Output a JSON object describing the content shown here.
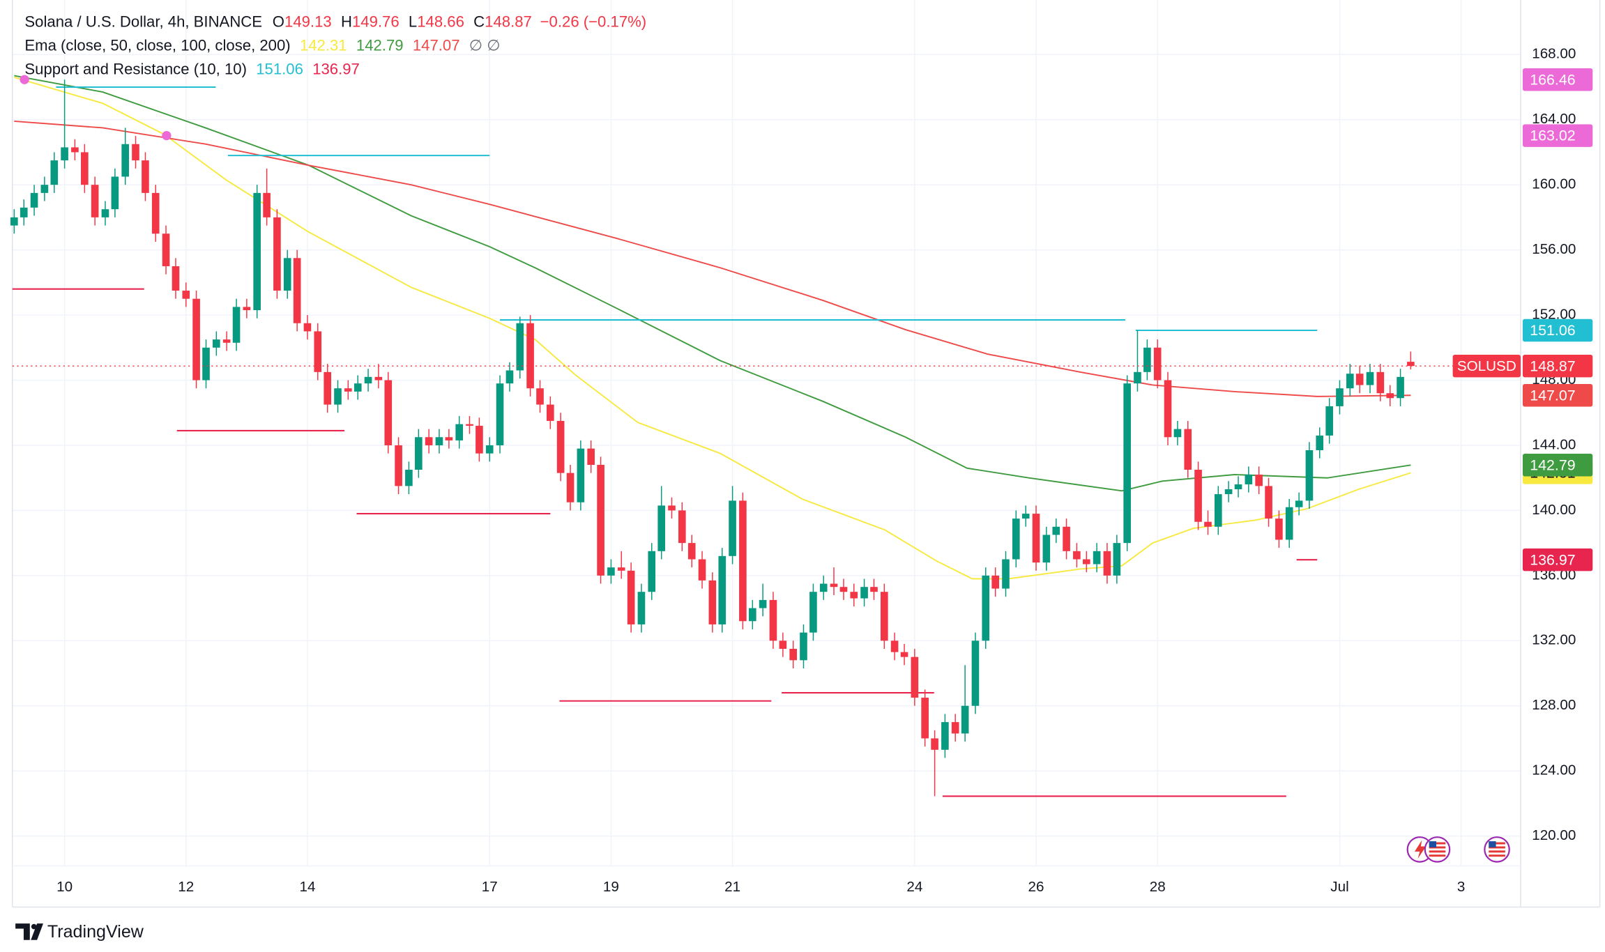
{
  "chart_data": {
    "type": "candlestick",
    "title": "Solana / U.S. Dollar, 4h, BINANCE",
    "ohlc_labels": [
      "O",
      "H",
      "L",
      "C"
    ],
    "change": "−0.26 (−0.17%)",
    "symbol": "SOLUSD",
    "brand": "TradingView",
    "up_color": "#089981",
    "down_color": "#f23645",
    "x": [
      9.17,
      9.33,
      9.5,
      9.67,
      9.83,
      10,
      10.17,
      10.33,
      10.5,
      10.67,
      10.83,
      11,
      11.17,
      11.33,
      11.5,
      11.67,
      11.83,
      12,
      12.17,
      12.33,
      12.5,
      12.67,
      12.83,
      13,
      13.17,
      13.33,
      13.5,
      13.67,
      13.83,
      14,
      14.17,
      14.33,
      14.5,
      14.67,
      14.83,
      15,
      15.17,
      15.33,
      15.5,
      15.67,
      15.83,
      16,
      16.17,
      16.33,
      16.5,
      16.67,
      16.83,
      17,
      17.17,
      17.33,
      17.5,
      17.67,
      17.83,
      18,
      18.17,
      18.33,
      18.5,
      18.67,
      18.83,
      19,
      19.17,
      19.33,
      19.5,
      19.67,
      19.83,
      20,
      20.17,
      20.33,
      20.5,
      20.67,
      20.83,
      21,
      21.17,
      21.33,
      21.5,
      21.67,
      21.83,
      22,
      22.17,
      22.33,
      22.5,
      22.67,
      22.83,
      23,
      23.17,
      23.33,
      23.5,
      23.67,
      23.83,
      24,
      24.17,
      24.33,
      24.5,
      24.67,
      24.83,
      25,
      25.17,
      25.33,
      25.5,
      25.67,
      25.83,
      26,
      26.17,
      26.33,
      26.5,
      26.67,
      26.83,
      27,
      27.17,
      27.33,
      27.5,
      27.67,
      27.83,
      28,
      28.17,
      28.33,
      28.5,
      28.67,
      28.83,
      29,
      29.17,
      29.33,
      29.5,
      29.67,
      29.83,
      30,
      30.17,
      30.33,
      30.5,
      30.67,
      30.83,
      31,
      31.17,
      31.33,
      31.5,
      31.67,
      31.83,
      32,
      32.17
    ],
    "open": [
      157.5,
      158.0,
      158.6,
      159.5,
      160.0,
      161.5,
      162.3,
      162.0,
      160.0,
      158.0,
      158.5,
      160.5,
      162.5,
      161.5,
      159.5,
      157.0,
      155.0,
      153.5,
      153.0,
      148.0,
      150.0,
      150.5,
      150.3,
      152.5,
      152.3,
      159.5,
      158.0,
      153.5,
      155.5,
      151.5,
      151.0,
      148.5,
      146.5,
      147.5,
      147.3,
      147.8,
      148.2,
      148.0,
      144.0,
      141.5,
      142.5,
      144.5,
      144.0,
      144.5,
      144.3,
      145.3,
      145.2,
      143.5,
      144.0,
      147.8,
      148.6,
      151.5,
      147.5,
      146.5,
      145.5,
      142.3,
      140.5,
      143.8,
      142.8,
      136.0,
      136.5,
      136.3,
      133.0,
      135.0,
      137.5,
      140.3,
      140.0,
      138.0,
      137.0,
      135.7,
      133.0,
      137.2,
      140.6,
      133.2,
      134.0,
      134.5,
      132.0,
      131.5,
      130.8,
      132.5,
      135.0,
      135.5,
      135.3,
      135.0,
      134.6,
      135.3,
      135.0,
      132.0,
      131.3,
      131.0,
      128.5,
      126.0,
      125.3,
      127.0,
      126.3,
      128.0,
      132.0,
      136.0,
      135.2,
      137.0,
      139.5,
      139.8,
      136.8,
      138.5,
      139.0,
      137.5,
      137.0,
      136.7,
      137.5,
      136.0,
      138.0,
      147.8,
      148.5,
      150.0,
      148.0,
      144.5,
      145.0,
      142.5,
      139.3,
      139.0,
      141.0,
      141.3,
      141.6,
      142.2,
      141.5,
      139.5,
      138.2,
      140.2,
      140.6,
      143.7,
      144.6,
      146.4,
      147.5,
      148.4,
      147.7,
      148.5,
      147.2,
      146.9,
      149.13
    ],
    "high": [
      158.5,
      159.1,
      160.0,
      160.5,
      162.0,
      166.46,
      162.8,
      162.5,
      160.5,
      159.0,
      161.0,
      163.5,
      163.0,
      162.0,
      160.0,
      157.5,
      155.5,
      154.0,
      153.5,
      150.5,
      151.0,
      151.0,
      153.0,
      153.0,
      160.0,
      161.0,
      158.5,
      156.0,
      156.0,
      152.0,
      151.5,
      149.0,
      148.0,
      148.0,
      148.3,
      148.7,
      149.0,
      148.5,
      144.5,
      143.0,
      145.0,
      145.0,
      145.0,
      145.0,
      145.8,
      145.8,
      145.7,
      144.5,
      148.3,
      149.1,
      151.9,
      152.0,
      148.0,
      147.0,
      146.0,
      142.8,
      144.3,
      144.3,
      143.3,
      137.0,
      137.5,
      136.8,
      135.5,
      138.0,
      141.5,
      140.8,
      140.5,
      138.5,
      137.5,
      136.2,
      137.7,
      141.5,
      141.1,
      134.5,
      135.5,
      135.0,
      132.5,
      132.0,
      133.0,
      135.5,
      136.0,
      136.5,
      135.8,
      135.5,
      135.8,
      135.8,
      135.5,
      132.5,
      131.8,
      131.5,
      129.0,
      126.5,
      127.5,
      127.5,
      130.5,
      132.5,
      136.5,
      136.5,
      137.5,
      140.0,
      140.3,
      140.3,
      139.0,
      139.5,
      139.5,
      138.0,
      137.5,
      138.0,
      138.0,
      138.5,
      148.3,
      151.06,
      150.5,
      150.5,
      148.5,
      145.5,
      145.5,
      143.0,
      140.0,
      141.5,
      141.8,
      142.1,
      142.7,
      142.7,
      142.0,
      140.0,
      140.7,
      141.1,
      144.2,
      145.1,
      146.9,
      148.0,
      149.0,
      148.9,
      149.0,
      149.0,
      147.7,
      148.7,
      149.76
    ],
    "low": [
      157.0,
      157.5,
      158.1,
      159.0,
      159.5,
      161.0,
      161.5,
      159.5,
      157.5,
      157.5,
      158.0,
      160.0,
      161.0,
      159.0,
      156.5,
      154.5,
      153.0,
      152.5,
      147.5,
      147.5,
      149.5,
      149.8,
      149.8,
      151.8,
      151.8,
      157.5,
      153.0,
      153.0,
      151.0,
      150.5,
      148.0,
      146.0,
      146.0,
      146.8,
      146.8,
      147.3,
      147.5,
      143.5,
      141.0,
      141.0,
      142.0,
      143.5,
      143.5,
      143.8,
      143.8,
      144.7,
      143.0,
      143.0,
      143.5,
      147.3,
      148.1,
      147.0,
      146.0,
      145.0,
      141.8,
      140.0,
      140.0,
      142.3,
      135.5,
      135.5,
      135.8,
      132.5,
      132.5,
      134.5,
      137.0,
      139.5,
      137.5,
      136.5,
      135.2,
      132.5,
      132.5,
      136.7,
      132.7,
      132.7,
      133.5,
      131.5,
      131.0,
      130.3,
      130.3,
      132.0,
      134.5,
      134.8,
      134.5,
      134.1,
      134.1,
      134.5,
      131.5,
      130.8,
      130.5,
      128.0,
      125.5,
      122.45,
      124.8,
      125.8,
      125.8,
      127.5,
      131.5,
      134.7,
      134.7,
      136.5,
      139.0,
      136.3,
      136.3,
      138.0,
      137.0,
      136.5,
      136.2,
      136.2,
      135.5,
      135.5,
      137.5,
      147.3,
      148.0,
      147.5,
      144.0,
      144.0,
      142.0,
      138.8,
      138.5,
      138.5,
      140.5,
      140.8,
      141.1,
      141.0,
      139.0,
      137.7,
      137.7,
      139.7,
      140.1,
      143.2,
      144.1,
      145.9,
      147.0,
      147.2,
      147.2,
      146.7,
      146.4,
      146.4,
      148.66
    ],
    "close": [
      158.0,
      158.6,
      159.5,
      160.0,
      161.5,
      162.3,
      162.0,
      160.0,
      158.0,
      158.5,
      160.5,
      162.5,
      161.5,
      159.5,
      157.0,
      155.0,
      153.5,
      153.0,
      148.0,
      150.0,
      150.5,
      150.3,
      152.5,
      152.3,
      159.5,
      158.0,
      153.5,
      155.5,
      151.5,
      151.0,
      148.5,
      146.5,
      147.5,
      147.3,
      147.8,
      148.2,
      148.0,
      144.0,
      141.5,
      142.5,
      144.5,
      144.0,
      144.5,
      144.3,
      145.3,
      145.2,
      143.5,
      144.0,
      147.8,
      148.6,
      151.5,
      147.5,
      146.5,
      145.5,
      142.3,
      140.5,
      143.8,
      142.8,
      136.0,
      136.5,
      136.3,
      133.0,
      135.0,
      137.5,
      140.3,
      140.0,
      138.0,
      137.0,
      135.7,
      133.0,
      137.2,
      140.6,
      133.2,
      134.0,
      134.5,
      132.0,
      131.5,
      130.8,
      132.5,
      135.0,
      135.5,
      135.3,
      135.0,
      134.6,
      135.3,
      135.0,
      132.0,
      131.3,
      131.0,
      128.5,
      126.0,
      125.3,
      127.0,
      126.3,
      128.0,
      132.0,
      136.0,
      135.2,
      137.0,
      139.5,
      139.8,
      136.8,
      138.5,
      139.0,
      137.5,
      137.0,
      136.7,
      137.5,
      136.0,
      138.0,
      147.8,
      148.5,
      150.0,
      148.0,
      144.5,
      145.0,
      142.5,
      139.3,
      139.0,
      141.0,
      141.3,
      141.6,
      142.2,
      141.5,
      139.5,
      138.2,
      140.2,
      140.6,
      143.7,
      144.6,
      146.4,
      147.5,
      148.4,
      147.7,
      148.5,
      147.2,
      146.9,
      148.2,
      148.87
    ],
    "xlim": [
      9.14,
      33.98
    ],
    "xticks": [
      10,
      12,
      14,
      17,
      19,
      21,
      24,
      26,
      28,
      {
        "value": 31,
        "label": "Jul"
      },
      {
        "value": 33,
        "label": "3"
      }
    ],
    "ylim": [
      115.64,
      171.35
    ],
    "yticks": [
      {
        "value": 120,
        "label": "120.00"
      },
      {
        "value": 124,
        "label": "124.00"
      },
      {
        "value": 128,
        "label": "128.00"
      },
      {
        "value": 132,
        "label": "132.00"
      },
      {
        "value": 136,
        "label": "136.00"
      },
      {
        "value": 140,
        "label": "140.00"
      },
      {
        "value": 144,
        "label": "144.00"
      },
      {
        "value": 148,
        "label": "148.00"
      },
      {
        "value": 152,
        "label": "152.00"
      },
      {
        "value": 156,
        "label": "156.00"
      },
      {
        "value": 160,
        "label": "160.00"
      },
      {
        "value": 164,
        "label": "164.00"
      },
      {
        "value": 168,
        "label": "168.00"
      }
    ],
    "grid": true,
    "indicators": [
      {
        "name": "Ema (close, 50, close, 100, close, 200)",
        "suffix": "∅  ∅",
        "lines": [
          {
            "color": "#f7e93f",
            "x": [
              9.17,
              10.63,
              11.64,
              12.66,
              14.02,
              15.71,
              17.0,
              17.75,
              18.42,
              19.44,
              20.8,
              22.15,
              23.51,
              24.36,
              24.95,
              25.54,
              26.73,
              27.41,
              27.92,
              28.59,
              29.61,
              30.46,
              31.31,
              32.17
            ],
            "values": [
              166.6,
              165.0,
              163.1,
              160.3,
              157.1,
              153.7,
              151.8,
              150.5,
              148.3,
              145.4,
              143.5,
              140.7,
              138.8,
              136.9,
              135.8,
              135.8,
              136.4,
              136.6,
              138.0,
              138.9,
              139.4,
              140.1,
              141.3,
              142.31
            ]
          },
          {
            "color": "#3f9b3f",
            "x": [
              9.17,
              10.63,
              12.32,
              14.02,
              15.71,
              17.0,
              17.75,
              19.1,
              20.8,
              22.49,
              23.85,
              24.86,
              25.88,
              27.41,
              28.08,
              29.27,
              30.8,
              32.17
            ],
            "values": [
              166.7,
              165.7,
              163.5,
              161.2,
              158.1,
              156.2,
              154.9,
              152.4,
              149.2,
              146.7,
              144.5,
              142.6,
              142.0,
              141.2,
              141.8,
              142.2,
              142.0,
              142.79
            ]
          },
          {
            "color": "#ef4a4a",
            "x": [
              9.17,
              10.63,
              12.32,
              14.02,
              15.71,
              17.0,
              19.1,
              20.8,
              22.49,
              23.85,
              25.2,
              26.73,
              27.92,
              29.27,
              30.63,
              32.17
            ],
            "values": [
              163.9,
              163.5,
              162.5,
              161.2,
              160.0,
              158.8,
              156.7,
              154.9,
              152.9,
              151.1,
              149.6,
              148.5,
              147.7,
              147.3,
              147.0,
              147.07
            ]
          }
        ]
      },
      {
        "name": "Support and Resistance (10, 10)",
        "resistance": {
          "color": "#22bfd3",
          "segments": [
            {
              "x": [
                9.86,
                12.49
              ],
              "value": 166.0
            },
            {
              "x": [
                12.69,
                17.0
              ],
              "value": 161.8
            },
            {
              "x": [
                17.17,
                27.47
              ],
              "value": 151.7
            },
            {
              "x": [
                27.64,
                30.63
              ],
              "value": 151.06
            }
          ]
        },
        "support": {
          "color": "#e8254f",
          "segments": [
            {
              "x": [
                9.14,
                11.31
              ],
              "value": 153.6
            },
            {
              "x": [
                11.85,
                14.61
              ],
              "value": 144.9
            },
            {
              "x": [
                14.81,
                18.0
              ],
              "value": 139.8
            },
            {
              "x": [
                18.15,
                21.64
              ],
              "value": 128.3
            },
            {
              "x": [
                21.81,
                24.32
              ],
              "value": 128.8
            },
            {
              "x": [
                24.46,
                30.12
              ],
              "value": 122.45
            },
            {
              "x": [
                30.29,
                30.63
              ],
              "value": 136.97
            }
          ]
        },
        "breaks": {
          "color": "#ec6ad8",
          "points": [
            {
              "x": 9.34,
              "value": 166.46
            },
            {
              "x": 11.68,
              "value": 163.02
            }
          ]
        }
      }
    ]
  }
}
